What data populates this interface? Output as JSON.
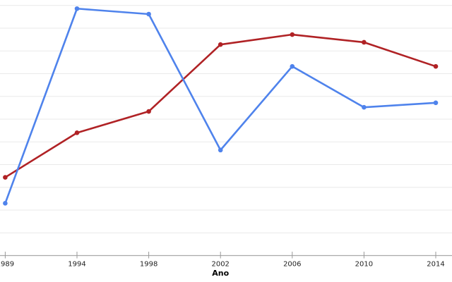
{
  "chart_data": {
    "type": "line",
    "title": "",
    "xlabel": "Ano",
    "ylabel": "",
    "categories": [
      "1989",
      "1994",
      "1998",
      "2002",
      "2006",
      "2010",
      "2014"
    ],
    "series": [
      {
        "name": "red-line",
        "color": "#B02225",
        "marker": "circle",
        "values": [
          17.2,
          27.0,
          31.7,
          46.4,
          48.6,
          46.9,
          41.6
        ]
      },
      {
        "name": "blue-line",
        "color": "#4F83EC",
        "marker": "circle",
        "values": [
          11.5,
          54.3,
          53.1,
          23.2,
          41.6,
          32.6,
          33.6
        ]
      }
    ],
    "ylim": [
      0,
      56.2
    ],
    "y_gridline_step": 5,
    "grid": "horizontal",
    "legend": "none",
    "y_tick_labels_visible": false,
    "background_color": "#ffffff",
    "gridline_color": "#e9e9e9",
    "axis_line_color": "#aaaaaa",
    "tick_mark_color": "#999999",
    "tick_label_color": "#1f1f1f"
  }
}
